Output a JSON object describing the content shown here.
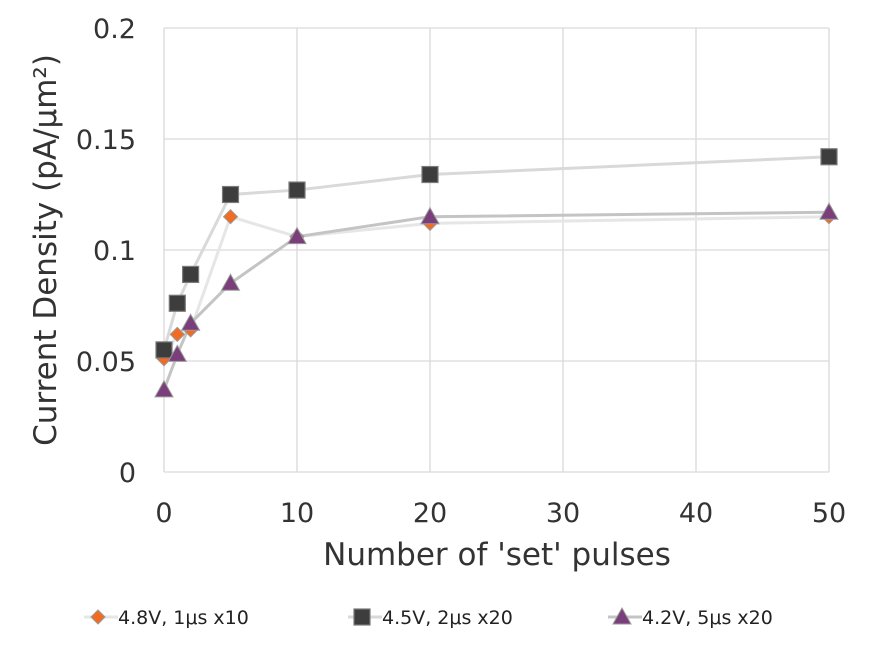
{
  "chart_data": {
    "type": "line",
    "title": "",
    "xlabel": "Number of 'set' pulses",
    "ylabel": "Current Density (pA/μm²)",
    "xlim": [
      0,
      50
    ],
    "ylim": [
      0,
      0.2
    ],
    "xticks": [
      0,
      10,
      20,
      30,
      40,
      50
    ],
    "yticks": [
      0,
      0.05,
      0.1,
      0.15,
      0.2
    ],
    "xtick_labels": [
      "0",
      "10",
      "20",
      "30",
      "40",
      "50"
    ],
    "ytick_labels": [
      "0",
      "0.05",
      "0.1",
      "0.15",
      "0.2"
    ],
    "grid": true,
    "legend_position": "bottom",
    "series": [
      {
        "name": "4.8V, 1μs x10",
        "marker": "diamond",
        "marker_color": "#f26b21",
        "line_color": "#e6e6e6",
        "x": [
          0,
          1,
          2,
          5,
          10,
          20,
          50
        ],
        "y": [
          0.051,
          0.062,
          0.064,
          0.115,
          0.106,
          0.112,
          0.115
        ]
      },
      {
        "name": "4.5V, 2μs x20",
        "marker": "square",
        "marker_color": "#3d3d3d",
        "line_color": "#d9d9d9",
        "x": [
          0,
          1,
          2,
          5,
          10,
          20,
          50
        ],
        "y": [
          0.055,
          0.076,
          0.089,
          0.125,
          0.127,
          0.134,
          0.142
        ]
      },
      {
        "name": "4.2V, 5μs x20",
        "marker": "triangle",
        "marker_color": "#7a3f7a",
        "line_color": "#c4c4c4",
        "x": [
          0,
          1,
          2,
          5,
          10,
          20,
          50
        ],
        "y": [
          0.037,
          0.053,
          0.067,
          0.085,
          0.106,
          0.115,
          0.117
        ]
      }
    ]
  }
}
